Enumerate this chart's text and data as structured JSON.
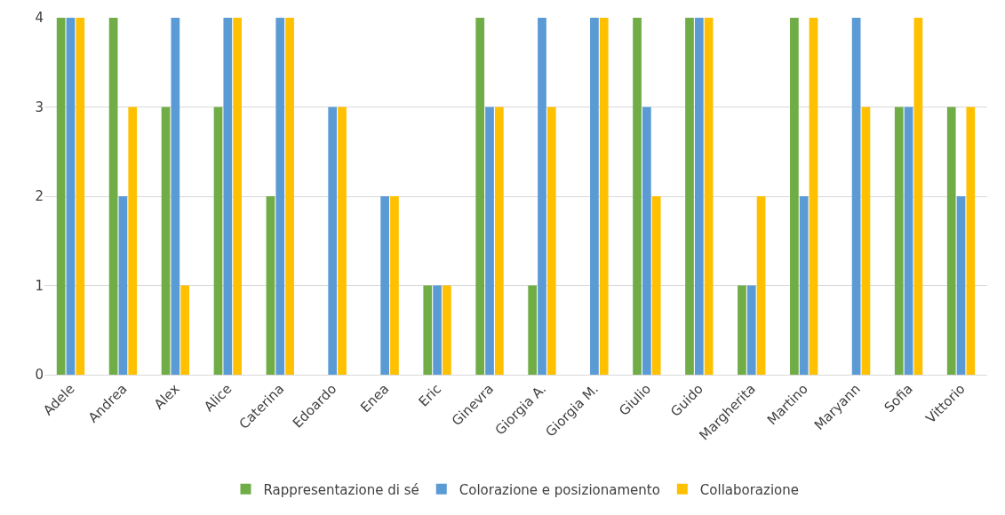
{
  "chart_data": {
    "type": "bar",
    "categories": [
      "Adele",
      "Andrea",
      "Alex",
      "Alice",
      "Caterina",
      "Edoardo",
      "Enea",
      "Eric",
      "Ginevra",
      "Giorgia A.",
      "Giorgia M.",
      "Giulio",
      "Guido",
      "Margherita",
      "Martino",
      "Maryann",
      "Sofia",
      "Vittorio"
    ],
    "series": [
      {
        "name": "Rappresentazione di sé",
        "color": "#70ad47",
        "values": [
          4,
          4,
          3,
          3,
          2,
          0,
          0,
          1,
          4,
          1,
          0,
          4,
          4,
          1,
          4,
          0,
          3,
          3
        ]
      },
      {
        "name": "Colorazione e posizionamento",
        "color": "#5b9bd5",
        "values": [
          4,
          2,
          4,
          4,
          4,
          3,
          2,
          1,
          3,
          4,
          4,
          3,
          4,
          1,
          2,
          4,
          3,
          2
        ]
      },
      {
        "name": "Collaborazione",
        "color": "#ffc000",
        "values": [
          4,
          3,
          1,
          4,
          4,
          3,
          2,
          1,
          3,
          3,
          4,
          2,
          4,
          2,
          4,
          3,
          4,
          3
        ]
      }
    ],
    "ylim": [
      0,
      4
    ],
    "yticks": [
      0,
      1,
      2,
      3,
      4
    ],
    "grid": "y",
    "legend": "bottom"
  }
}
